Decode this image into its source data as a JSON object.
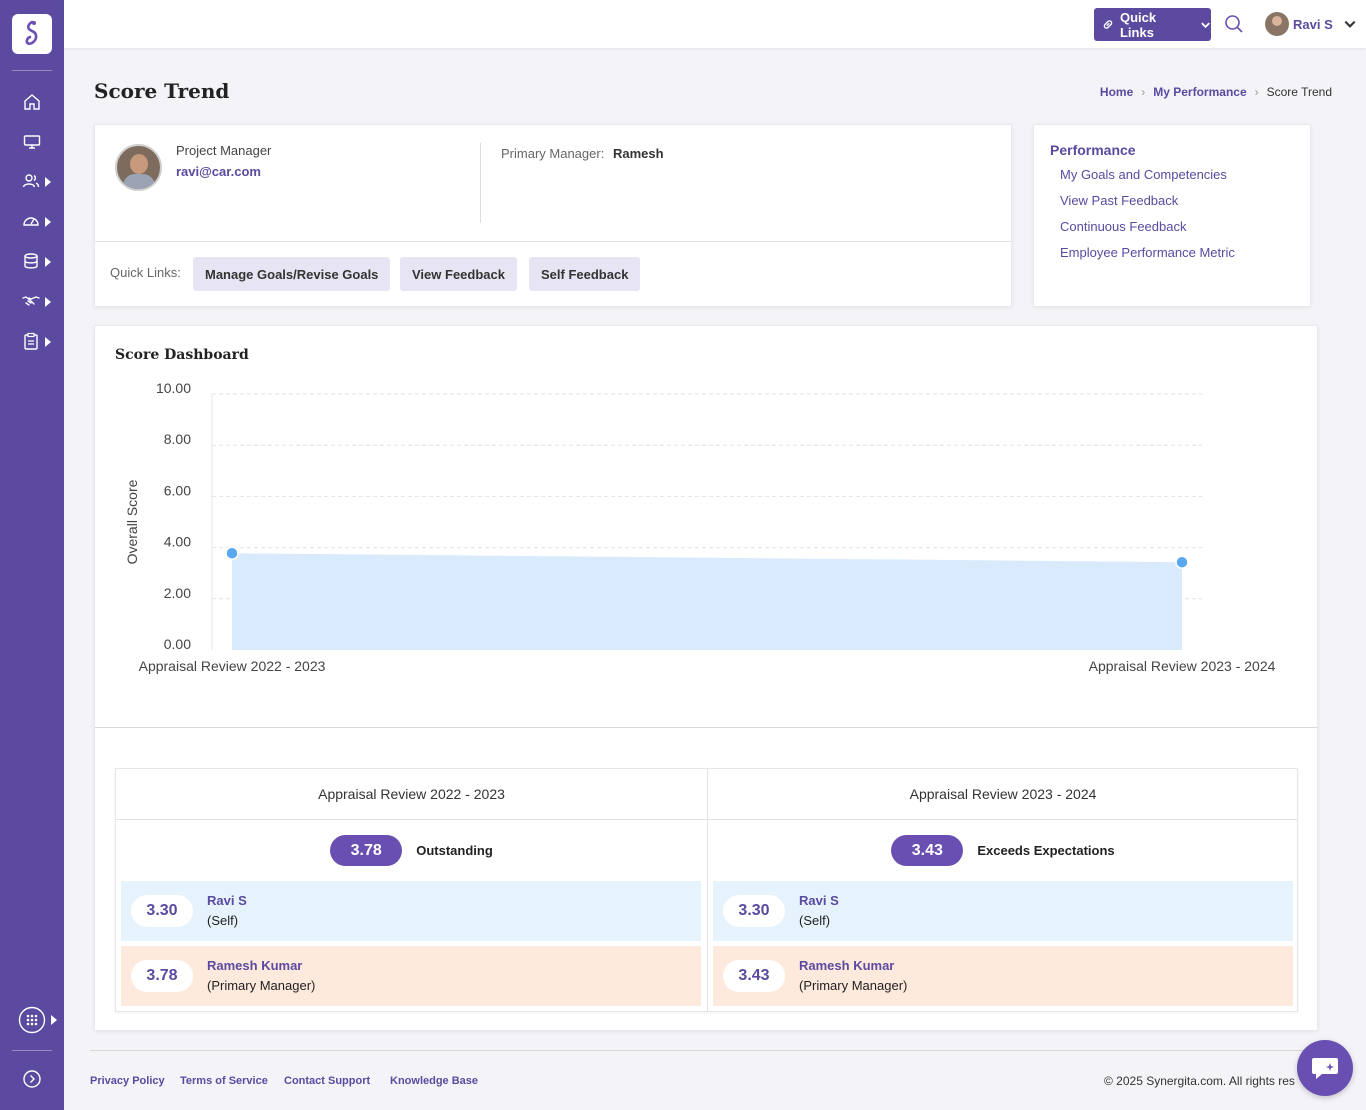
{
  "topbar": {
    "quick_links_label": "Quick Links",
    "user_name": "Ravi S"
  },
  "sidebar": {
    "items": [
      {
        "icon": "home-icon"
      },
      {
        "icon": "monitor-icon"
      },
      {
        "icon": "users-icon"
      },
      {
        "icon": "dashboard-gauge-icon"
      },
      {
        "icon": "database-icon"
      },
      {
        "icon": "handshake-icon"
      },
      {
        "icon": "clipboard-icon"
      }
    ]
  },
  "page": {
    "title": "Score Trend",
    "breadcrumb": [
      "Home",
      "My Performance",
      "Score Trend"
    ]
  },
  "profile": {
    "role": "Project Manager",
    "email": "ravi@car.com",
    "primary_manager_label": "Primary Manager:",
    "primary_manager_name": "Ramesh",
    "quick_links_label": "Quick Links:",
    "quick_links": [
      "Manage Goals/Revise Goals",
      "View Feedback",
      "Self Feedback"
    ]
  },
  "performance": {
    "title": "Performance",
    "links": [
      "My Goals and Competencies",
      "View Past Feedback",
      "Continuous Feedback",
      "Employee Performance Metric"
    ]
  },
  "score_dashboard": {
    "title": "Score Dashboard"
  },
  "chart_data": {
    "type": "area",
    "ylabel": "Overall Score",
    "ylim": [
      0,
      10
    ],
    "yticks": [
      "10.00",
      "8.00",
      "6.00",
      "4.00",
      "2.00",
      "0.00"
    ],
    "categories": [
      "Appraisal Review 2022 - 2023",
      "Appraisal Review 2023 - 2024"
    ],
    "values": [
      3.78,
      3.43
    ],
    "grid": true,
    "colors": {
      "fill": "#d9eafc",
      "point": "#5aa9f0"
    }
  },
  "reviews": [
    {
      "title": "Appraisal Review 2022 - 2023",
      "overall": "3.78",
      "rating": "Outstanding",
      "self_score": "3.30",
      "self_name": "Ravi S",
      "self_role": "(Self)",
      "mgr_score": "3.78",
      "mgr_name": "Ramesh Kumar",
      "mgr_role": "(Primary Manager)"
    },
    {
      "title": "Appraisal Review 2023 - 2024",
      "overall": "3.43",
      "rating": "Exceeds Expectations",
      "self_score": "3.30",
      "self_name": "Ravi S",
      "self_role": "(Self)",
      "mgr_score": "3.43",
      "mgr_name": "Ramesh Kumar",
      "mgr_role": "(Primary Manager)"
    }
  ],
  "footer": {
    "links": [
      "Privacy Policy",
      "Terms of Service",
      "Contact Support",
      "Knowledge Base"
    ],
    "copyright": "© 2025 Synergita.com. All rights res"
  },
  "colors": {
    "brand": "#5b4aa0",
    "accent_pill": "#6a4fb3",
    "self_row": "#e6f3fc",
    "manager_row": "#fdeadd"
  }
}
